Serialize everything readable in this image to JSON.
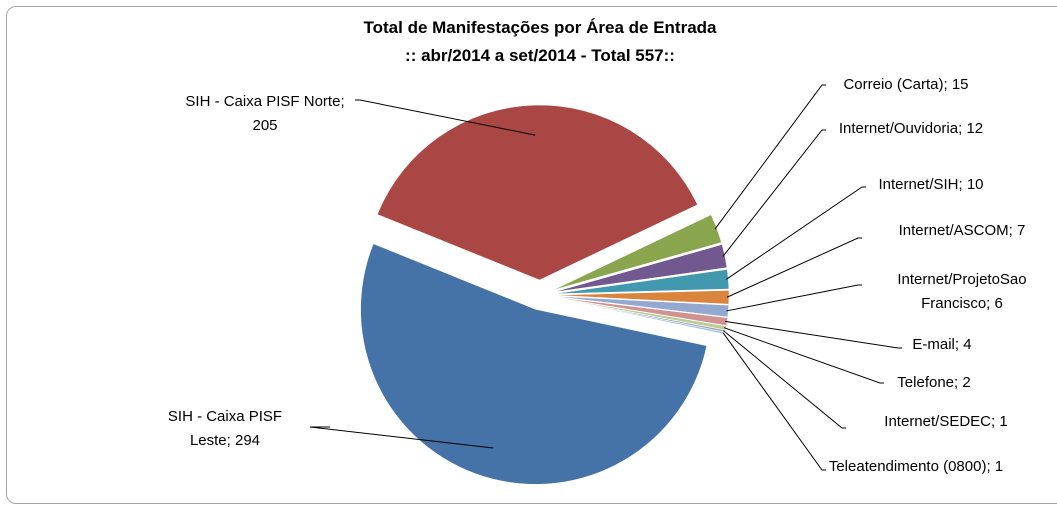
{
  "chart_data": {
    "type": "pie",
    "title": "Total de Manifestações por Área de Entrada",
    "subtitle": ":: abr/2014  a set/2014 - Total 557::",
    "categories": [
      "SIH - Caixa PISF Leste",
      "SIH - Caixa PISF Norte",
      "Correio (Carta)",
      "Internet/Ouvidoria",
      "Internet/SIH",
      "Internet/ASCOM",
      "Internet/ProjetoSao Francisco",
      "E-mail",
      "Telefone",
      "Internet/SEDEC",
      "Teleatendimento (0800)"
    ],
    "values": [
      294,
      205,
      15,
      12,
      10,
      7,
      6,
      4,
      2,
      1,
      1
    ],
    "colors": [
      "#4572a7",
      "#aa4643",
      "#89a54e",
      "#71588f",
      "#4198af",
      "#db843d",
      "#93a9cf",
      "#d19392",
      "#b9cd96",
      "#a99bbd",
      "#92c5d6"
    ]
  }
}
